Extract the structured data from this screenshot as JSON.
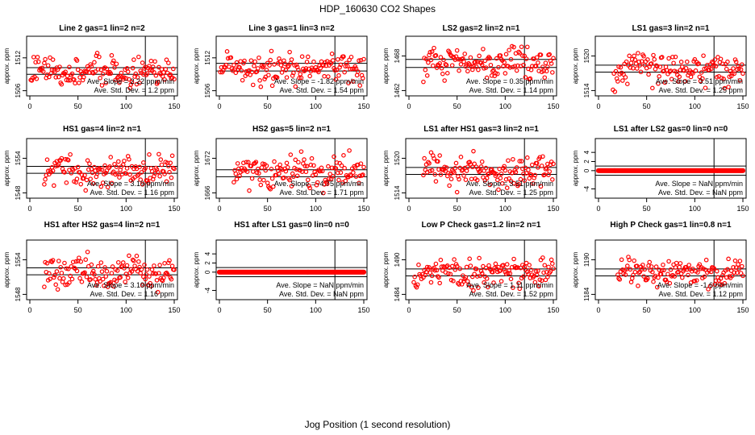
{
  "figure": {
    "title": "HDP_160630  CO2 Shapes",
    "xlabel": "Jog Position (1 second resolution)"
  },
  "colors": {
    "points": "#ff0000",
    "axes": "#000000"
  },
  "chart_data": [
    {
      "type": "scatter",
      "title": "Line 2 gas=1 lin=2 n=2",
      "ylabel": "approx. ppm",
      "xlim": [
        0,
        150
      ],
      "ylim": [
        1505.5,
        1515.5
      ],
      "yticks": [
        1506,
        1512
      ],
      "xticks": [
        0,
        50,
        100,
        150
      ],
      "hlines": [
        1510.2,
        1509.0
      ],
      "vline": 120,
      "x_start": 1,
      "x_end": 150,
      "center": 1509.6,
      "spread": 1.6,
      "slope_text": "Ave. Slope =  2.22  ppm/min",
      "sd_text": "Ave. Std. Dev. =  1.2  ppm"
    },
    {
      "type": "scatter",
      "title": "Line 3 gas=1 lin=3 n=2",
      "ylabel": "approx. ppm",
      "xlim": [
        0,
        150
      ],
      "ylim": [
        1505.5,
        1515.5
      ],
      "yticks": [
        1506,
        1512
      ],
      "xticks": [
        0,
        50,
        100,
        150
      ],
      "hlines": [
        1511.0,
        1509.6
      ],
      "vline": 120,
      "x_start": 1,
      "x_end": 150,
      "center": 1510.2,
      "spread": 1.8,
      "slope_text": "Ave. Slope =  -1.82  ppm/min",
      "sd_text": "Ave. Std. Dev. =  1.54  ppm"
    },
    {
      "type": "scatter",
      "title": "LS2 gas=2 lin=2 n=1",
      "ylabel": "approx. ppm",
      "xlim": [
        0,
        150
      ],
      "ylim": [
        1461.5,
        1471
      ],
      "yticks": [
        1462,
        1468
      ],
      "xticks": [
        0,
        50,
        100,
        150
      ],
      "hlines": [
        1467.4,
        1466.0
      ],
      "vline": 120,
      "x_start": 15,
      "x_end": 150,
      "center": 1466.9,
      "spread": 1.6,
      "slope_text": "Ave. Slope =  0.35  ppm/min",
      "sd_text": "Ave. Std. Dev. =  1.14  ppm"
    },
    {
      "type": "scatter",
      "title": "LS1 gas=3 lin=2 n=1",
      "ylabel": "approx. ppm",
      "xlim": [
        0,
        150
      ],
      "ylim": [
        1513.5,
        1523
      ],
      "yticks": [
        1514,
        1520
      ],
      "xticks": [
        0,
        50,
        100,
        150
      ],
      "hlines": [
        1518.4,
        1517.2
      ],
      "vline": 120,
      "x_start": 15,
      "x_end": 150,
      "center": 1517.6,
      "spread": 1.8,
      "slope_text": "Ave. Slope =  3.51  ppm/min",
      "sd_text": "Ave. Std. Dev. =  1.25  ppm"
    },
    {
      "type": "scatter",
      "title": "HS1 gas=4 lin=2 n=1",
      "ylabel": "approx. ppm",
      "xlim": [
        0,
        150
      ],
      "ylim": [
        1547.5,
        1557
      ],
      "yticks": [
        1548,
        1554
      ],
      "xticks": [
        0,
        50,
        100,
        150
      ],
      "hlines": [
        1552.6,
        1551.4
      ],
      "vline": 120,
      "x_start": 15,
      "x_end": 150,
      "center": 1551.8,
      "spread": 1.6,
      "slope_text": "Ave. Slope =  3.19  ppm/min",
      "sd_text": "Ave. Std. Dev. =  1.16  ppm"
    },
    {
      "type": "scatter",
      "title": "HS2 gas=5 lin=2 n=1",
      "ylabel": "approx. ppm",
      "xlim": [
        0,
        150
      ],
      "ylim": [
        1665.5,
        1675
      ],
      "yticks": [
        1666,
        1672
      ],
      "xticks": [
        0,
        50,
        100,
        150
      ],
      "hlines": [
        1670.0,
        1668.8
      ],
      "vline": 120,
      "x_start": 15,
      "x_end": 150,
      "center": 1669.4,
      "spread": 1.9,
      "slope_text": "Ave. Slope =  -4.75  ppm/min",
      "sd_text": "Ave. Std. Dev. =  1.71  ppm"
    },
    {
      "type": "scatter",
      "title": "LS1 after HS1 gas=3 lin=2 n=1",
      "ylabel": "approx. ppm",
      "xlim": [
        0,
        150
      ],
      "ylim": [
        1513.5,
        1523
      ],
      "yticks": [
        1514,
        1520
      ],
      "xticks": [
        0,
        50,
        100,
        150
      ],
      "hlines": [
        1518.4,
        1517.2
      ],
      "vline": 120,
      "x_start": 15,
      "x_end": 150,
      "center": 1517.6,
      "spread": 1.8,
      "slope_text": "Ave. Slope =  3.51  ppm/min",
      "sd_text": "Ave. Std. Dev. =  1.25  ppm"
    },
    {
      "type": "scatter",
      "title": "LS1 after LS2 gas=0 lin=0 n=0",
      "ylabel": "approx. ppm",
      "xlim": [
        0,
        150
      ],
      "ylim": [
        -5.5,
        6.5
      ],
      "yticks": [
        -4,
        0,
        2,
        4
      ],
      "xticks": [
        0,
        50,
        100,
        150
      ],
      "hlines": [
        1,
        -1
      ],
      "vline": 120,
      "x_start": 0,
      "x_end": 150,
      "center": 0,
      "spread": 0,
      "slope_text": "Ave. Slope =  NaN  ppm/min",
      "sd_text": "Ave. Std. Dev. =  NaN  ppm"
    },
    {
      "type": "scatter",
      "title": "HS1 after HS2 gas=4 lin=2 n=1",
      "ylabel": "approx. ppm",
      "xlim": [
        0,
        150
      ],
      "ylim": [
        1547.5,
        1557
      ],
      "yticks": [
        1548,
        1554
      ],
      "xticks": [
        0,
        50,
        100,
        150
      ],
      "hlines": [
        1552.6,
        1551.4
      ],
      "vline": 120,
      "x_start": 15,
      "x_end": 150,
      "center": 1551.8,
      "spread": 1.6,
      "slope_text": "Ave. Slope =  3.19  ppm/min",
      "sd_text": "Ave. Std. Dev. =  1.16  ppm"
    },
    {
      "type": "scatter",
      "title": "HS1 after LS1 gas=0 lin=0 n=0",
      "ylabel": "approx. ppm",
      "xlim": [
        0,
        150
      ],
      "ylim": [
        -5.5,
        6.5
      ],
      "yticks": [
        -4,
        0,
        2,
        4
      ],
      "xticks": [
        0,
        50,
        100,
        150
      ],
      "hlines": [
        1,
        -1
      ],
      "vline": 120,
      "x_start": 0,
      "x_end": 150,
      "center": 0,
      "spread": 0,
      "slope_text": "Ave. Slope =  NaN  ppm/min",
      "sd_text": "Ave. Std. Dev. =  NaN  ppm"
    },
    {
      "type": "scatter",
      "title": "Low P Check gas=1.2 lin=2 n=1",
      "ylabel": "approx. ppm",
      "xlim": [
        0,
        150
      ],
      "ylim": [
        1483.5,
        1493
      ],
      "yticks": [
        1484,
        1490
      ],
      "xticks": [
        0,
        50,
        100,
        150
      ],
      "hlines": [
        1488.4,
        1487.2
      ],
      "vline": 120,
      "x_start": 5,
      "x_end": 150,
      "center": 1487.8,
      "spread": 1.6,
      "slope_text": "Ave. Slope =  1.11  ppm/min",
      "sd_text": "Ave. Std. Dev. =  1.52  ppm"
    },
    {
      "type": "scatter",
      "title": "High P Check gas=1 lin=0.8 n=1",
      "ylabel": "approx. ppm",
      "xlim": [
        0,
        150
      ],
      "ylim": [
        1183.5,
        1193
      ],
      "yticks": [
        1184,
        1190
      ],
      "xticks": [
        0,
        50,
        100,
        150
      ],
      "hlines": [
        1188.4,
        1187.2
      ],
      "vline": 120,
      "x_start": 20,
      "x_end": 150,
      "center": 1187.8,
      "spread": 1.5,
      "slope_text": "Ave. Slope =  -1.6  ppm/min",
      "sd_text": "Ave. Std. Dev. =  1.12  ppm"
    }
  ]
}
